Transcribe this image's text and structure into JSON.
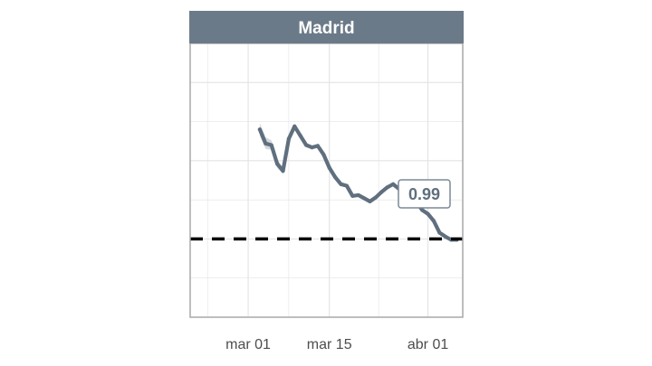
{
  "chart_data": {
    "type": "line",
    "title": "Madrid",
    "xlabel": "",
    "ylabel": "",
    "x_ticks": [
      "mar 01",
      "mar 15",
      "abr 01"
    ],
    "x_tick_dates": [
      "2020-03-01",
      "2020-03-15",
      "2020-04-01"
    ],
    "xlim": [
      "2020-02-20",
      "2020-04-07"
    ],
    "ylim": [
      0,
      3.5
    ],
    "reference_line": 1,
    "last_value_label": "0.99",
    "grid": true,
    "legend": "none",
    "series": [
      {
        "values": [
          {
            "date": "2020-03-03",
            "y": 2.4,
            "lo": 2.32,
            "hi": 2.48
          },
          {
            "date": "2020-03-04",
            "y": 2.22,
            "lo": 2.15,
            "hi": 2.3
          },
          {
            "date": "2020-03-05",
            "y": 2.2,
            "lo": 2.14,
            "hi": 2.26
          },
          {
            "date": "2020-03-06",
            "y": 1.96,
            "lo": 1.91,
            "hi": 2.02
          },
          {
            "date": "2020-03-07",
            "y": 1.87,
            "lo": 1.83,
            "hi": 1.91
          },
          {
            "date": "2020-03-08",
            "y": 2.28,
            "lo": 2.25,
            "hi": 2.31
          },
          {
            "date": "2020-03-09",
            "y": 2.44,
            "lo": 2.41,
            "hi": 2.47
          },
          {
            "date": "2020-03-10",
            "y": 2.32,
            "lo": 2.3,
            "hi": 2.34
          },
          {
            "date": "2020-03-11",
            "y": 2.2,
            "lo": 2.18,
            "hi": 2.22
          },
          {
            "date": "2020-03-12",
            "y": 2.17,
            "lo": 2.15,
            "hi": 2.19
          },
          {
            "date": "2020-03-13",
            "y": 2.19,
            "lo": 2.17,
            "hi": 2.21
          },
          {
            "date": "2020-03-14",
            "y": 2.08,
            "lo": 2.06,
            "hi": 2.1
          },
          {
            "date": "2020-03-15",
            "y": 1.91,
            "lo": 1.89,
            "hi": 1.93
          },
          {
            "date": "2020-03-16",
            "y": 1.79,
            "lo": 1.77,
            "hi": 1.81
          },
          {
            "date": "2020-03-17",
            "y": 1.7,
            "lo": 1.68,
            "hi": 1.72
          },
          {
            "date": "2020-03-18",
            "y": 1.68,
            "lo": 1.66,
            "hi": 1.7
          },
          {
            "date": "2020-03-19",
            "y": 1.55,
            "lo": 1.53,
            "hi": 1.57
          },
          {
            "date": "2020-03-20",
            "y": 1.56,
            "lo": 1.54,
            "hi": 1.58
          },
          {
            "date": "2020-03-21",
            "y": 1.52,
            "lo": 1.5,
            "hi": 1.54
          },
          {
            "date": "2020-03-22",
            "y": 1.48,
            "lo": 1.46,
            "hi": 1.5
          },
          {
            "date": "2020-03-23",
            "y": 1.53,
            "lo": 1.51,
            "hi": 1.55
          },
          {
            "date": "2020-03-24",
            "y": 1.6,
            "lo": 1.58,
            "hi": 1.62
          },
          {
            "date": "2020-03-25",
            "y": 1.66,
            "lo": 1.64,
            "hi": 1.68
          },
          {
            "date": "2020-03-26",
            "y": 1.7,
            "lo": 1.68,
            "hi": 1.72
          },
          {
            "date": "2020-03-27",
            "y": 1.64,
            "lo": 1.62,
            "hi": 1.66
          },
          {
            "date": "2020-03-28",
            "y": 1.53,
            "lo": 1.51,
            "hi": 1.55
          },
          {
            "date": "2020-03-29",
            "y": 1.47,
            "lo": 1.45,
            "hi": 1.49
          },
          {
            "date": "2020-03-30",
            "y": 1.47,
            "lo": 1.45,
            "hi": 1.49
          },
          {
            "date": "2020-03-31",
            "y": 1.37,
            "lo": 1.35,
            "hi": 1.39
          },
          {
            "date": "2020-04-01",
            "y": 1.32,
            "lo": 1.3,
            "hi": 1.34
          },
          {
            "date": "2020-04-02",
            "y": 1.23,
            "lo": 1.21,
            "hi": 1.25
          },
          {
            "date": "2020-04-03",
            "y": 1.08,
            "lo": 1.06,
            "hi": 1.1
          },
          {
            "date": "2020-04-04",
            "y": 1.03,
            "lo": 1.01,
            "hi": 1.05
          },
          {
            "date": "2020-04-05",
            "y": 0.99,
            "lo": 0.97,
            "hi": 1.01
          },
          {
            "date": "2020-04-06",
            "y": 0.99,
            "lo": 0.97,
            "hi": 1.01
          }
        ]
      }
    ]
  },
  "colors": {
    "strip_bg": "#6b7a88",
    "strip_text": "#ffffff",
    "line": "#5f6f7e",
    "ribbon": "#c4c8cc",
    "grid": "#e3e3e3",
    "panel_border": "#a9a9a9",
    "reference": "#000000",
    "axis_text": "#4d4d4d",
    "label_border": "#7b8996",
    "label_text": "#5f6f7e"
  }
}
